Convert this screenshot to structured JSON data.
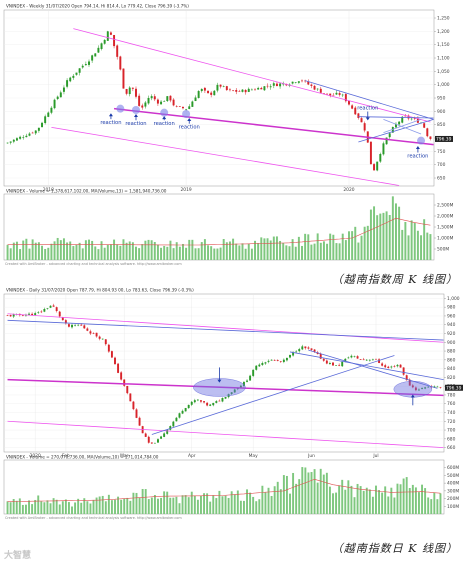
{
  "watermark": "大智慧",
  "chart_data": [
    {
      "type": "candlestick",
      "header": "VNINDEX - Weekly 31/07/2020 Open 794.14, Hi 814.4, Lo 779.42, Close 796.39 (-3.7%)",
      "volume_header": "VNINDEX - Volume = 1,378,617,102.00, MA(Volume,13) = 1,581,940,736.00",
      "credit": "Created with AmiBroker - advanced charting and technical analysis software. http://www.amibroker.com",
      "caption": "（越南指数周 K 线图）",
      "last_close": 796.39,
      "last_close_label": "796.39",
      "price_axis": {
        "min": 620,
        "max": 1280,
        "ticks": [
          650,
          700,
          750,
          800,
          850,
          900,
          950,
          1000,
          1050,
          1100,
          1150,
          1200,
          1250
        ],
        "tick_labels": [
          "650",
          "700",
          "750",
          "800",
          "850",
          "900",
          "950",
          "1,000",
          "1,050",
          "1,100",
          "1,150",
          "1,200",
          "1,250"
        ]
      },
      "volume_axis": {
        "max": 3000,
        "ticks": [
          500,
          1000,
          1500,
          2000,
          2500
        ],
        "tick_labels": [
          "500M",
          "1,000M",
          "1,500M",
          "2,000M",
          "2,500M"
        ]
      },
      "time_labels": [
        {
          "label": "2018",
          "index": 13
        },
        {
          "label": "2019",
          "index": 57
        },
        {
          "label": "2020",
          "index": 109
        }
      ],
      "bar_count": 136,
      "anchors": [
        [
          0,
          780
        ],
        [
          10,
          830
        ],
        [
          14,
          910
        ],
        [
          20,
          1020
        ],
        [
          27,
          1100
        ],
        [
          30,
          1145
        ],
        [
          33,
          1205
        ],
        [
          36,
          1085
        ],
        [
          38,
          960
        ],
        [
          40,
          1000
        ],
        [
          43,
          905
        ],
        [
          46,
          960
        ],
        [
          49,
          930
        ],
        [
          52,
          955
        ],
        [
          54,
          915
        ],
        [
          58,
          910
        ],
        [
          62,
          985
        ],
        [
          65,
          960
        ],
        [
          68,
          1000
        ],
        [
          71,
          975
        ],
        [
          75,
          975
        ],
        [
          80,
          985
        ],
        [
          85,
          1000
        ],
        [
          90,
          1005
        ],
        [
          94,
          1020
        ],
        [
          98,
          990
        ],
        [
          103,
          960
        ],
        [
          107,
          965
        ],
        [
          110,
          920
        ],
        [
          113,
          870
        ],
        [
          115,
          820
        ],
        [
          117,
          665
        ],
        [
          119,
          730
        ],
        [
          121,
          790
        ],
        [
          124,
          845
        ],
        [
          127,
          880
        ],
        [
          130,
          870
        ],
        [
          133,
          855
        ],
        [
          135,
          796
        ]
      ],
      "volume_anchors": [
        [
          0,
          700
        ],
        [
          15,
          750
        ],
        [
          30,
          700
        ],
        [
          50,
          700
        ],
        [
          70,
          720
        ],
        [
          90,
          850
        ],
        [
          105,
          1100
        ],
        [
          112,
          1200
        ],
        [
          115,
          1600
        ],
        [
          117,
          2300
        ],
        [
          119,
          2000
        ],
        [
          121,
          2500
        ],
        [
          123,
          2900
        ],
        [
          125,
          1900
        ],
        [
          128,
          1400
        ],
        [
          131,
          1300
        ],
        [
          133,
          1600
        ],
        [
          135,
          1380
        ]
      ],
      "ma_anchors": [
        [
          0,
          700
        ],
        [
          30,
          700
        ],
        [
          60,
          680
        ],
        [
          90,
          780
        ],
        [
          110,
          1000
        ],
        [
          118,
          1500
        ],
        [
          124,
          1900
        ],
        [
          130,
          1700
        ],
        [
          135,
          1580
        ]
      ],
      "lines": [
        {
          "color": "#ee55ee",
          "width": 0.8,
          "points": [
            [
              21,
              1210
            ],
            [
              135,
              860
            ]
          ]
        },
        {
          "color": "#ee55ee",
          "width": 0.8,
          "points": [
            [
              14,
              840
            ],
            [
              125,
              622
            ]
          ]
        },
        {
          "color": "#cc33cc",
          "width": 1.5,
          "points": [
            [
              34,
              910
            ],
            [
              136,
              775
            ]
          ]
        },
        {
          "color": "#5a6ad8",
          "width": 0.8,
          "points": [
            [
              95,
              1015
            ],
            [
              136,
              870
            ]
          ]
        },
        {
          "color": "#5a6ad8",
          "width": 0.8,
          "points": [
            [
              112,
              785
            ],
            [
              136,
              870
            ]
          ]
        },
        {
          "color": "#5a6ad8",
          "width": 0.8,
          "points": [
            [
              112,
              880
            ],
            [
              136,
              875
            ]
          ]
        },
        {
          "color": "#8a9ae8",
          "width": 0.8,
          "points": [
            [
              120,
              870
            ],
            [
              132,
              815
            ]
          ]
        },
        {
          "color": "#8a9ae8",
          "width": 0.8,
          "points": [
            [
              120,
              820
            ],
            [
              132,
              870
            ]
          ]
        }
      ],
      "highlights": [
        {
          "index": 36,
          "value": 910
        },
        {
          "index": 41,
          "value": 905
        },
        {
          "index": 50,
          "value": 895
        },
        {
          "index": 57,
          "value": 890
        },
        {
          "index": 132,
          "value": 790
        }
      ],
      "annotations": [
        {
          "text": "reaction",
          "index": 33,
          "value": 852,
          "arrow_to": 893
        },
        {
          "text": "reaction",
          "index": 41,
          "value": 848,
          "arrow_to": 890
        },
        {
          "text": "reaction",
          "index": 50,
          "value": 848,
          "arrow_to": 882
        },
        {
          "text": "reaction",
          "index": 58,
          "value": 835,
          "arrow_to": 875
        },
        {
          "text": "reaction",
          "index": 115,
          "value": 903,
          "arrow_to": 866
        },
        {
          "text": "reaction",
          "index": 131,
          "value": 727,
          "arrow_to": 770
        }
      ]
    },
    {
      "type": "candlestick",
      "header": "VNINDEX - Daily 31/07/2020 Open 787.79, Hi 804.93 00, Lo 783.63, Close 796.39 (-0.3%)",
      "volume_header": "VNINDEX - Volume = 270,070,736.00, MA(Volume,10) = 271,014,784.00",
      "credit": "Created with AmiBroker - advanced charting and technical analysis software. http://www.amibroker.com",
      "caption": "（越南指数日 K 线图）",
      "last_close": 796.39,
      "last_close_label": "796.39",
      "price_axis": {
        "min": 650,
        "max": 1010,
        "ticks": [
          660,
          680,
          700,
          720,
          740,
          760,
          780,
          800,
          820,
          840,
          860,
          880,
          900,
          920,
          940,
          960,
          980,
          1000
        ],
        "tick_labels": [
          "660",
          "680",
          "700",
          "720",
          "740",
          "760",
          "780",
          "800",
          "820",
          "840",
          "860",
          "880",
          "900",
          "920",
          "940",
          "960",
          "980",
          "1,000"
        ]
      },
      "volume_axis": {
        "max": 700,
        "ticks": [
          100,
          200,
          300,
          400,
          500,
          600
        ],
        "tick_labels": [
          "100M",
          "200M",
          "300M",
          "400M",
          "500M",
          "600M"
        ]
      },
      "time_labels": [
        {
          "label": "2020",
          "index": 9
        },
        {
          "label": "Feb",
          "index": 19
        },
        {
          "label": "Mar",
          "index": 38
        },
        {
          "label": "Apr",
          "index": 60
        },
        {
          "label": "May",
          "index": 80
        },
        {
          "label": "Jun",
          "index": 99
        },
        {
          "label": "Jul",
          "index": 120
        }
      ],
      "bar_count": 142,
      "anchors": [
        [
          0,
          960
        ],
        [
          10,
          965
        ],
        [
          15,
          985
        ],
        [
          20,
          935
        ],
        [
          24,
          940
        ],
        [
          28,
          920
        ],
        [
          32,
          905
        ],
        [
          36,
          840
        ],
        [
          40,
          775
        ],
        [
          44,
          700
        ],
        [
          47,
          665
        ],
        [
          50,
          680
        ],
        [
          54,
          715
        ],
        [
          58,
          750
        ],
        [
          62,
          770
        ],
        [
          66,
          755
        ],
        [
          70,
          770
        ],
        [
          74,
          790
        ],
        [
          78,
          810
        ],
        [
          82,
          850
        ],
        [
          86,
          860
        ],
        [
          90,
          855
        ],
        [
          96,
          890
        ],
        [
          100,
          880
        ],
        [
          104,
          855
        ],
        [
          108,
          845
        ],
        [
          112,
          870
        ],
        [
          116,
          860
        ],
        [
          120,
          862
        ],
        [
          124,
          840
        ],
        [
          128,
          850
        ],
        [
          131,
          805
        ],
        [
          134,
          790
        ],
        [
          137,
          800
        ],
        [
          141,
          796
        ]
      ],
      "volume_anchors": [
        [
          0,
          150
        ],
        [
          10,
          180
        ],
        [
          20,
          140
        ],
        [
          30,
          170
        ],
        [
          38,
          220
        ],
        [
          44,
          250
        ],
        [
          48,
          240
        ],
        [
          55,
          210
        ],
        [
          60,
          230
        ],
        [
          70,
          250
        ],
        [
          80,
          240
        ],
        [
          90,
          380
        ],
        [
          95,
          420
        ],
        [
          100,
          620
        ],
        [
          103,
          450
        ],
        [
          108,
          350
        ],
        [
          115,
          300
        ],
        [
          120,
          280
        ],
        [
          125,
          270
        ],
        [
          130,
          380
        ],
        [
          133,
          300
        ],
        [
          137,
          270
        ],
        [
          141,
          270
        ]
      ],
      "ma_anchors": [
        [
          0,
          160
        ],
        [
          30,
          180
        ],
        [
          50,
          230
        ],
        [
          70,
          240
        ],
        [
          90,
          300
        ],
        [
          100,
          450
        ],
        [
          106,
          380
        ],
        [
          115,
          320
        ],
        [
          125,
          280
        ],
        [
          135,
          290
        ],
        [
          141,
          270
        ]
      ],
      "lines": [
        {
          "color": "#ee55ee",
          "width": 0.8,
          "points": [
            [
              0,
              965
            ],
            [
              142,
              900
            ]
          ]
        },
        {
          "color": "#ee55ee",
          "width": 0.8,
          "points": [
            [
              0,
              720
            ],
            [
              142,
              660
            ]
          ]
        },
        {
          "color": "#cc33cc",
          "width": 1.5,
          "points": [
            [
              0,
              815
            ],
            [
              142,
              779
            ]
          ]
        },
        {
          "color": "#5a6ad8",
          "width": 0.8,
          "points": [
            [
              0,
              950
            ],
            [
              142,
              905
            ]
          ]
        },
        {
          "color": "#5a6ad8",
          "width": 0.8,
          "points": [
            [
              92,
              878
            ],
            [
              142,
              815
            ]
          ]
        },
        {
          "color": "#5a6ad8",
          "width": 0.8,
          "points": [
            [
              47,
              690
            ],
            [
              126,
              870
            ]
          ]
        },
        {
          "color": "#5a6ad8",
          "width": 0.8,
          "points": [
            [
              98,
              882
            ],
            [
              140,
              795
            ]
          ]
        }
      ],
      "highlights": [
        {
          "index": 69,
          "value": 797,
          "rx": 26,
          "ry": 9
        },
        {
          "index": 132,
          "value": 793,
          "rx": 19,
          "ry": 8
        }
      ],
      "annotations": [
        {
          "text": "",
          "index": 69,
          "value": 845,
          "arrow_to": 808
        },
        {
          "text": "",
          "index": 132,
          "value": 745,
          "arrow_to": 781
        }
      ]
    }
  ]
}
